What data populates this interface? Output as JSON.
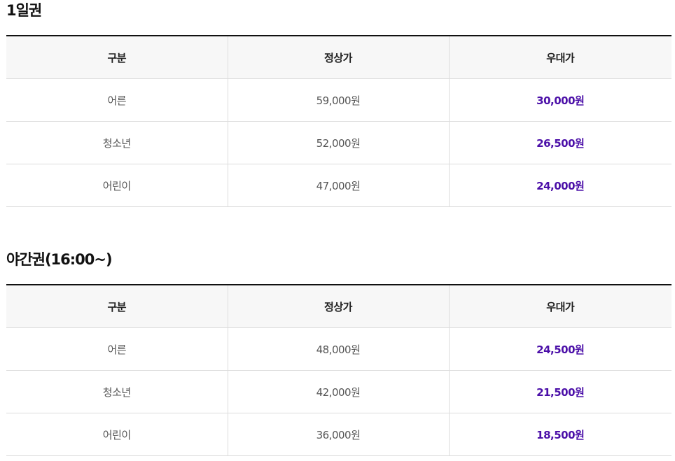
{
  "accent_color": "#4b0fa8",
  "sections": [
    {
      "title": "1일권",
      "headers": [
        "구분",
        "정상가",
        "우대가"
      ],
      "rows": [
        {
          "category": "어른",
          "regular": "59,000원",
          "discount": "30,000원"
        },
        {
          "category": "청소년",
          "regular": "52,000원",
          "discount": "26,500원"
        },
        {
          "category": "어린이",
          "regular": "47,000원",
          "discount": "24,000원"
        }
      ]
    },
    {
      "title": "야간권(16:00~)",
      "headers": [
        "구분",
        "정상가",
        "우대가"
      ],
      "rows": [
        {
          "category": "어른",
          "regular": "48,000원",
          "discount": "24,500원"
        },
        {
          "category": "청소년",
          "regular": "42,000원",
          "discount": "21,500원"
        },
        {
          "category": "어린이",
          "regular": "36,000원",
          "discount": "18,500원"
        }
      ]
    }
  ]
}
